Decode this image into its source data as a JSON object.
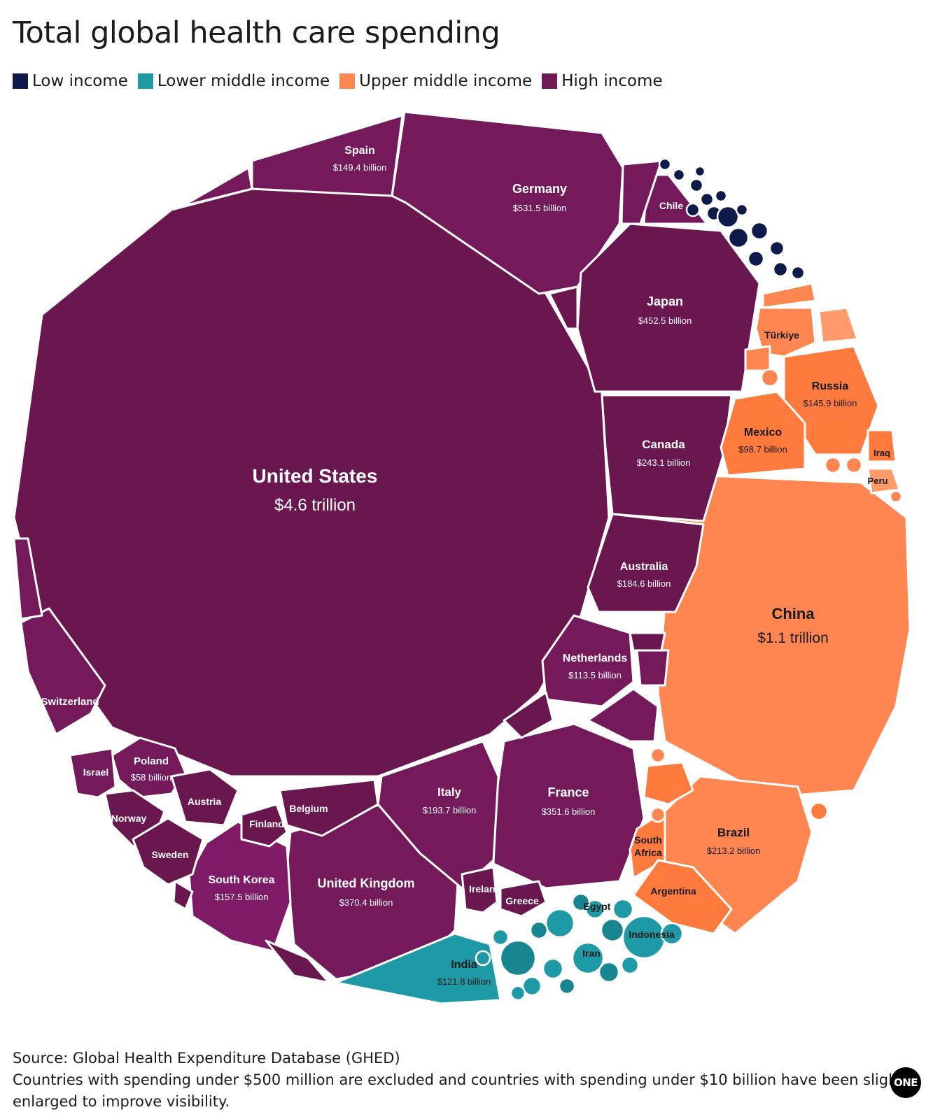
{
  "title": "Total global health care spending",
  "legend": [
    {
      "label": "Low income",
      "color": "#0d1a4a"
    },
    {
      "label": "Lower middle income",
      "color": "#1e9aa6"
    },
    {
      "label": "Upper middle income",
      "color": "#ff8650"
    },
    {
      "label": "High income",
      "color": "#701a55"
    }
  ],
  "footer": {
    "source": "Source: Global Health Expenditure Database (GHED)",
    "note": "Countries with spending under $500 million are excluded and countries with spending under $10 billion have been slightly enlarged to improve visibility."
  },
  "logo": "ONE",
  "chart_data": {
    "type": "voronoi-treemap",
    "groups": [
      "Low income",
      "Lower middle income",
      "Upper middle income",
      "High income"
    ],
    "labeled_countries": [
      {
        "name": "United States",
        "value_label": "$4.6 trillion",
        "value_billion": 4600,
        "group": "High income"
      },
      {
        "name": "China",
        "value_label": "$1.1 trillion",
        "value_billion": 1100,
        "group": "Upper middle income"
      },
      {
        "name": "Germany",
        "value_label": "$531.5 billion",
        "value_billion": 531.5,
        "group": "High income"
      },
      {
        "name": "Japan",
        "value_label": "$452.5 billion",
        "value_billion": 452.5,
        "group": "High income"
      },
      {
        "name": "United Kingdom",
        "value_label": "$370.4 billion",
        "value_billion": 370.4,
        "group": "High income"
      },
      {
        "name": "France",
        "value_label": "$351.6 billion",
        "value_billion": 351.6,
        "group": "High income"
      },
      {
        "name": "Canada",
        "value_label": "$243.1 billion",
        "value_billion": 243.1,
        "group": "High income"
      },
      {
        "name": "Brazil",
        "value_label": "$213.2 billion",
        "value_billion": 213.2,
        "group": "Upper middle income"
      },
      {
        "name": "Italy",
        "value_label": "$193.7 billion",
        "value_billion": 193.7,
        "group": "High income"
      },
      {
        "name": "Australia",
        "value_label": "$184.6 billion",
        "value_billion": 184.6,
        "group": "High income"
      },
      {
        "name": "South Korea",
        "value_label": "$157.5 billion",
        "value_billion": 157.5,
        "group": "High income"
      },
      {
        "name": "Spain",
        "value_label": "$149.4 billion",
        "value_billion": 149.4,
        "group": "High income"
      },
      {
        "name": "Russia",
        "value_label": "$145.9 billion",
        "value_billion": 145.9,
        "group": "Upper middle income"
      },
      {
        "name": "India",
        "value_label": "$121.8 billion",
        "value_billion": 121.8,
        "group": "Lower middle income"
      },
      {
        "name": "Netherlands",
        "value_label": "$113.5 billion",
        "value_billion": 113.5,
        "group": "High income"
      },
      {
        "name": "Mexico",
        "value_label": "$98.7 billion",
        "value_billion": 98.7,
        "group": "Upper middle income"
      },
      {
        "name": "Poland",
        "value_label": "$58 billion",
        "value_billion": 58,
        "group": "High income"
      },
      {
        "name": "Switzerland",
        "value_label": "",
        "group": "High income"
      },
      {
        "name": "Israel",
        "value_label": "",
        "group": "High income"
      },
      {
        "name": "Norway",
        "value_label": "",
        "group": "High income"
      },
      {
        "name": "Austria",
        "value_label": "",
        "group": "High income"
      },
      {
        "name": "Sweden",
        "value_label": "",
        "group": "High income"
      },
      {
        "name": "Finland",
        "value_label": "",
        "group": "High income"
      },
      {
        "name": "Belgium",
        "value_label": "",
        "group": "High income"
      },
      {
        "name": "Ireland",
        "value_label": "",
        "group": "High income"
      },
      {
        "name": "Greece",
        "value_label": "",
        "group": "High income"
      },
      {
        "name": "Chile",
        "value_label": "",
        "group": "High income"
      },
      {
        "name": "Türkiye",
        "value_label": "",
        "group": "Upper middle income"
      },
      {
        "name": "Iraq",
        "value_label": "",
        "group": "Upper middle income"
      },
      {
        "name": "Peru",
        "value_label": "",
        "group": "Upper middle income"
      },
      {
        "name": "South Africa",
        "value_label": "",
        "group": "Upper middle income"
      },
      {
        "name": "Argentina",
        "value_label": "",
        "group": "Upper middle income"
      },
      {
        "name": "Egypt",
        "value_label": "",
        "group": "Lower middle income"
      },
      {
        "name": "Indonesia",
        "value_label": "",
        "group": "Lower middle income"
      },
      {
        "name": "Iran",
        "value_label": "",
        "group": "Lower middle income"
      }
    ]
  }
}
